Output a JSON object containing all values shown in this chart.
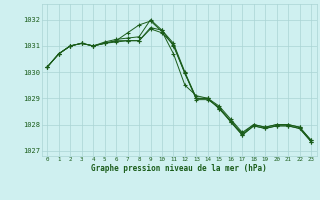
{
  "title": "Graphe pression niveau de la mer (hPa)",
  "background_color": "#cff0f0",
  "grid_color": "#aad4d4",
  "line_color": "#1a5c1a",
  "x_labels": [
    "0",
    "1",
    "2",
    "3",
    "4",
    "5",
    "6",
    "7",
    "8",
    "9",
    "10",
    "11",
    "12",
    "13",
    "14",
    "15",
    "16",
    "17",
    "18",
    "19",
    "20",
    "21",
    "22",
    "23"
  ],
  "ylim": [
    1026.8,
    1032.6
  ],
  "yticks": [
    1027,
    1028,
    1029,
    1030,
    1031,
    1032
  ],
  "series1": [
    1030.2,
    1030.7,
    1031.0,
    1031.1,
    1031.0,
    1031.1,
    1031.15,
    1031.2,
    1031.2,
    1031.65,
    1031.5,
    1031.05,
    1029.95,
    1028.95,
    1028.95,
    1028.65,
    1028.1,
    1027.6,
    1027.95,
    1027.85,
    1027.95,
    1027.95,
    1027.85,
    1027.35
  ],
  "series2": [
    1030.2,
    1030.7,
    1031.0,
    1031.1,
    1031.0,
    1031.15,
    1031.25,
    1031.3,
    1031.35,
    1032.0,
    1031.6,
    1031.0,
    1029.95,
    1029.0,
    1029.0,
    1028.6,
    1028.1,
    1027.6,
    1027.95,
    1027.85,
    1027.95,
    1027.95,
    1027.85,
    1027.35
  ],
  "series3": [
    1030.2,
    1030.7,
    1031.0,
    1031.1,
    1031.0,
    1031.1,
    1031.2,
    1031.5,
    1031.8,
    1031.95,
    1031.55,
    1030.7,
    1029.5,
    1029.1,
    1029.0,
    1028.6,
    1028.15,
    1027.65,
    1028.0,
    1027.9,
    1028.0,
    1028.0,
    1027.9,
    1027.4
  ],
  "series4": [
    1030.2,
    1030.7,
    1031.0,
    1031.1,
    1031.0,
    1031.1,
    1031.2,
    1031.2,
    1031.2,
    1031.7,
    1031.6,
    1031.1,
    1030.0,
    1029.0,
    1029.0,
    1028.7,
    1028.2,
    1027.7,
    1028.0,
    1027.9,
    1028.0,
    1028.0,
    1027.9,
    1027.4
  ]
}
